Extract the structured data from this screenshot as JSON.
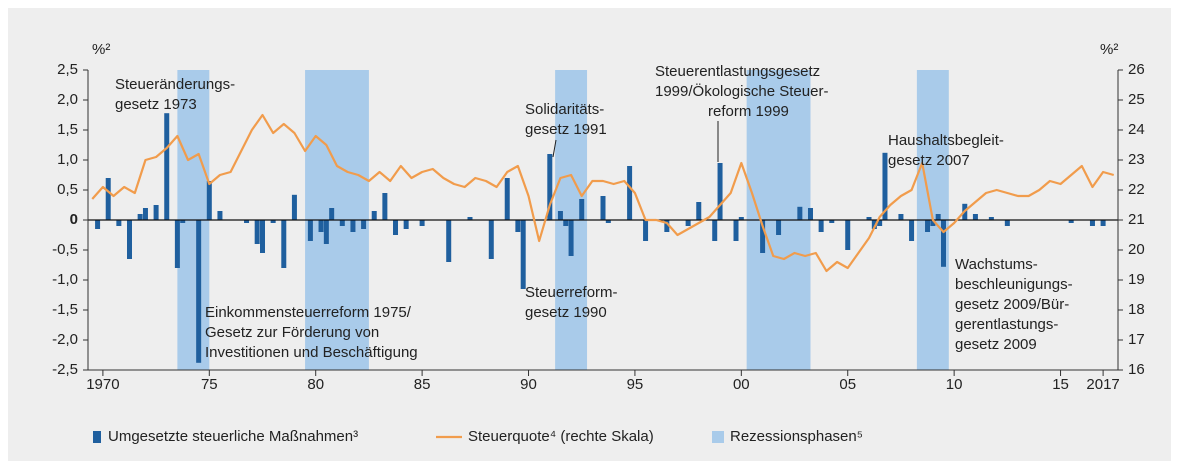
{
  "chart_data": {
    "type": "combo",
    "y_unit": "%²",
    "y2_unit": "%²",
    "xlim": [
      1969.3,
      2017.7
    ],
    "xticks": [
      {
        "value": 1970,
        "label": "1970"
      },
      {
        "value": 1975,
        "label": "75"
      },
      {
        "value": 1980,
        "label": "80"
      },
      {
        "value": 1985,
        "label": "85"
      },
      {
        "value": 1990,
        "label": "90"
      },
      {
        "value": 1995,
        "label": "95"
      },
      {
        "value": 2000,
        "label": "00"
      },
      {
        "value": 2005,
        "label": "05"
      },
      {
        "value": 2010,
        "label": "10"
      },
      {
        "value": 2015,
        "label": "15"
      },
      {
        "value": 2017,
        "label": "2017"
      }
    ],
    "ylim": [
      -2.5,
      2.5
    ],
    "yticks": [
      {
        "value": -2.5,
        "label": "-2,5"
      },
      {
        "value": -2.0,
        "label": "-2,0"
      },
      {
        "value": -1.5,
        "label": "-1,5"
      },
      {
        "value": -1.0,
        "label": "-1,0"
      },
      {
        "value": -0.5,
        "label": "-0,5"
      },
      0,
      {
        "value": 0.5,
        "label": "0,5"
      },
      {
        "value": 1.0,
        "label": "1,0"
      },
      {
        "value": 1.5,
        "label": "1,5"
      },
      {
        "value": 2.0,
        "label": "2,0"
      },
      {
        "value": 2.5,
        "label": "2,5"
      }
    ],
    "y2lim": [
      16,
      26
    ],
    "y2ticks": [
      16,
      17,
      18,
      19,
      20,
      21,
      22,
      23,
      24,
      25,
      26
    ],
    "bands": {
      "name": "Rezessionsphasen⁵",
      "color": "#a9cbea",
      "ranges": [
        [
          1973.5,
          1975.0
        ],
        [
          1979.5,
          1982.5
        ],
        [
          1991.25,
          1992.75
        ],
        [
          2000.25,
          2003.25
        ],
        [
          2008.25,
          2009.75
        ]
      ]
    },
    "series": [
      {
        "name": "Umgesetzte steuerliche Maßnahmen³",
        "type": "bar",
        "color": "#1f5f9e",
        "x": [
          1969.75,
          1970.25,
          1970.75,
          1971.25,
          1971.75,
          1972.0,
          1972.5,
          1973.0,
          1973.5,
          1973.75,
          1974.5,
          1975.0,
          1975.5,
          1976.75,
          1977.25,
          1977.5,
          1978.0,
          1978.5,
          1979.0,
          1979.75,
          1980.25,
          1980.5,
          1980.75,
          1981.25,
          1981.75,
          1982.25,
          1982.75,
          1983.25,
          1983.75,
          1984.25,
          1985.0,
          1986.25,
          1987.25,
          1988.25,
          1989.0,
          1989.5,
          1989.75,
          1991.0,
          1991.5,
          1991.75,
          1992.0,
          1992.5,
          1993.5,
          1993.75,
          1994.75,
          1995.5,
          1996.5,
          1997.5,
          1998.0,
          1998.75,
          1999.0,
          1999.75,
          2000.0,
          2001.0,
          2001.75,
          2002.75,
          2003.25,
          2003.75,
          2004.25,
          2005.0,
          2006.0,
          2006.25,
          2006.5,
          2006.75,
          2007.5,
          2008.0,
          2008.75,
          2009.0,
          2009.25,
          2009.5,
          2010.5,
          2011.0,
          2011.75,
          2012.5,
          2015.5,
          2016.5,
          2017.0
        ],
        "values": [
          -0.15,
          0.7,
          -0.1,
          -0.65,
          0.1,
          0.2,
          0.25,
          1.78,
          -0.8,
          -0.05,
          -2.38,
          0.65,
          0.15,
          -0.05,
          -0.4,
          -0.55,
          -0.05,
          -0.8,
          0.42,
          -0.35,
          -0.2,
          -0.4,
          0.2,
          -0.1,
          -0.2,
          -0.15,
          0.15,
          0.45,
          -0.25,
          -0.15,
          -0.1,
          -0.7,
          0.05,
          -0.65,
          0.7,
          -0.2,
          -1.15,
          1.1,
          0.15,
          -0.1,
          -0.6,
          0.35,
          0.4,
          -0.05,
          0.9,
          -0.35,
          -0.2,
          -0.1,
          0.3,
          -0.35,
          0.95,
          -0.35,
          0.05,
          -0.55,
          -0.25,
          0.22,
          0.2,
          -0.2,
          -0.05,
          -0.5,
          0.05,
          -0.15,
          -0.1,
          1.12,
          0.1,
          -0.35,
          -0.2,
          -0.1,
          0.1,
          -0.78,
          0.27,
          0.1,
          0.05,
          -0.1,
          -0.05,
          -0.1,
          -0.1
        ]
      },
      {
        "name": "Steuerquote⁴ (rechte Skala)",
        "type": "line",
        "axis": "y2",
        "color": "#f19c4c",
        "x": [
          1969.5,
          1970.0,
          1970.5,
          1971.0,
          1971.5,
          1972.0,
          1972.5,
          1973.0,
          1973.5,
          1974.0,
          1974.5,
          1975.0,
          1975.5,
          1976.0,
          1976.5,
          1977.0,
          1977.5,
          1978.0,
          1978.5,
          1979.0,
          1979.5,
          1980.0,
          1980.5,
          1981.0,
          1981.5,
          1982.0,
          1982.5,
          1983.0,
          1983.5,
          1984.0,
          1984.5,
          1985.0,
          1985.5,
          1986.0,
          1986.5,
          1987.0,
          1987.5,
          1988.0,
          1988.5,
          1989.0,
          1989.5,
          1990.0,
          1990.5,
          1991.0,
          1991.5,
          1992.0,
          1992.5,
          1993.0,
          1993.5,
          1994.0,
          1994.5,
          1995.0,
          1995.5,
          1996.0,
          1996.5,
          1997.0,
          1997.5,
          1998.0,
          1998.5,
          1999.0,
          1999.5,
          2000.0,
          2000.5,
          2001.0,
          2001.5,
          2002.0,
          2002.5,
          2003.0,
          2003.5,
          2004.0,
          2004.5,
          2005.0,
          2005.5,
          2006.0,
          2006.5,
          2007.0,
          2007.5,
          2008.0,
          2008.5,
          2009.0,
          2009.5,
          2010.0,
          2010.5,
          2011.0,
          2011.5,
          2012.0,
          2012.5,
          2013.0,
          2013.5,
          2014.0,
          2014.5,
          2015.0,
          2015.5,
          2016.0,
          2016.5,
          2017.0,
          2017.5
        ],
        "values": [
          21.7,
          22.1,
          21.8,
          22.1,
          21.9,
          23.0,
          23.1,
          23.4,
          23.8,
          23.0,
          23.2,
          22.2,
          22.5,
          22.6,
          23.3,
          24.0,
          24.5,
          23.9,
          24.2,
          23.9,
          23.3,
          23.8,
          23.5,
          22.8,
          22.6,
          22.5,
          22.3,
          22.6,
          22.3,
          22.8,
          22.4,
          22.6,
          22.7,
          22.4,
          22.2,
          22.1,
          22.4,
          22.3,
          22.1,
          22.6,
          22.8,
          21.8,
          20.3,
          21.5,
          22.4,
          22.5,
          21.8,
          22.3,
          22.3,
          22.2,
          22.3,
          21.9,
          21.0,
          21.0,
          20.9,
          20.5,
          20.7,
          20.9,
          21.1,
          21.5,
          21.9,
          22.9,
          21.9,
          20.8,
          19.8,
          19.7,
          19.9,
          19.8,
          19.9,
          19.3,
          19.6,
          19.4,
          19.9,
          20.4,
          21.1,
          21.5,
          21.8,
          22.0,
          22.9,
          21.0,
          20.6,
          20.9,
          21.3,
          21.6,
          21.9,
          22.0,
          21.9,
          21.8,
          21.8,
          22.0,
          22.3,
          22.2,
          22.5,
          22.8,
          22.1,
          22.6,
          22.5
        ]
      }
    ],
    "annotations": [
      {
        "lines": [
          "Steueränderungs-",
          "gesetz 1973"
        ]
      },
      {
        "lines": [
          "Einkommensteuerreform 1975/",
          "Gesetz zur Förderung von",
          "Investitionen und Beschäftigung"
        ]
      },
      {
        "lines": [
          "Solidaritäts-",
          "gesetz 1991"
        ]
      },
      {
        "lines": [
          "Steuerreform-",
          "gesetz 1990"
        ]
      },
      {
        "lines": [
          "Steuerentlastungsgesetz",
          "1999/Ökologische Steuer-",
          "reform 1999"
        ]
      },
      {
        "lines": [
          "Haushaltsbegleit-",
          "gesetz 2007"
        ]
      },
      {
        "lines": [
          "Wachstums-",
          "beschleunigungs-",
          "gesetz 2009/Bür-",
          "gerentlastungs-",
          "gesetz 2009"
        ]
      }
    ]
  }
}
